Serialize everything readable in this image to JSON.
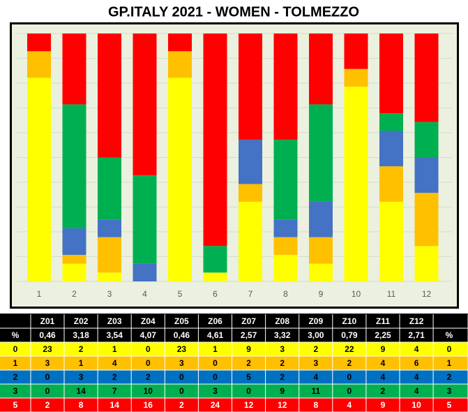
{
  "chart_data": {
    "type": "bar",
    "stacked": true,
    "title": "GP.ITALY 2021 - WOMEN - TOLMEZZO",
    "categories": [
      "1",
      "2",
      "3",
      "4",
      "5",
      "6",
      "7",
      "8",
      "9",
      "10",
      "11",
      "12"
    ],
    "series": [
      {
        "name": "0",
        "color": "#ffff00",
        "values": [
          23,
          2,
          1,
          0,
          23,
          1,
          9,
          3,
          2,
          22,
          9,
          4
        ]
      },
      {
        "name": "1",
        "color": "#ffc000",
        "values": [
          3,
          1,
          4,
          0,
          3,
          0,
          2,
          2,
          3,
          2,
          4,
          6
        ]
      },
      {
        "name": "2",
        "color": "#4472c4",
        "values": [
          0,
          3,
          2,
          2,
          0,
          0,
          5,
          2,
          4,
          0,
          4,
          4
        ]
      },
      {
        "name": "3",
        "color": "#00b050",
        "values": [
          0,
          14,
          7,
          10,
          0,
          3,
          0,
          9,
          11,
          0,
          2,
          4
        ]
      },
      {
        "name": "5",
        "color": "#ff0000",
        "values": [
          2,
          8,
          14,
          16,
          2,
          24,
          12,
          12,
          8,
          4,
          9,
          10
        ]
      }
    ],
    "grid": true
  },
  "table": {
    "zones": [
      "Z01",
      "Z02",
      "Z03",
      "Z04",
      "Z05",
      "Z06",
      "Z07",
      "Z08",
      "Z09",
      "Z10",
      "Z11",
      "Z12"
    ],
    "percent_label": "%",
    "percents": [
      "0,46",
      "3,18",
      "3,54",
      "4,07",
      "0,46",
      "4,61",
      "2,57",
      "3,32",
      "3,00",
      "0,79",
      "2,25",
      "2,71"
    ],
    "row_colors": [
      "#ffff00",
      "#ffc000",
      "#0070c0",
      "#00b050",
      "#ff0000"
    ],
    "row_text_colors": [
      "#000000",
      "#000000",
      "#000000",
      "#000000",
      "#ffffff"
    ]
  }
}
